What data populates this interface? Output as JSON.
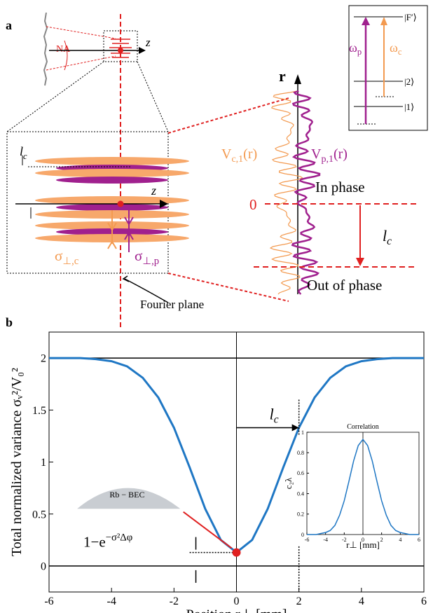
{
  "panel_a": {
    "label": "a",
    "na": "NA",
    "z_small": "z",
    "z_big": "z",
    "level_f": "|F′⟩",
    "level_2": "|2⟩",
    "level_1": "|1⟩",
    "omega_p": {
      "main": "ω",
      "sub": "p"
    },
    "omega_c": {
      "main": "ω",
      "sub": "c"
    },
    "r_axis": "r",
    "lc_box": {
      "main": "l",
      "sub": "c"
    },
    "v_c": {
      "main": "V",
      "sub": "c,1",
      "tail": "(r)"
    },
    "v_p": {
      "main": "V",
      "sub": "p,1",
      "tail": "(r)"
    },
    "in_phase": "In phase",
    "zero": "0",
    "lc_plot": {
      "main": "l",
      "sub": "c"
    },
    "out_phase": "Out of phase",
    "sigma_c": {
      "main": "σ",
      "sub": "⊥,c"
    },
    "sigma_p": {
      "main": "σ",
      "sub": "⊥,p"
    },
    "fourier": "Fourier plane"
  },
  "panel_b": {
    "label": "b",
    "lc": {
      "main": "l",
      "sub": "c"
    },
    "damping": {
      "main": "1−e",
      "sup": "−σ²Δφ"
    },
    "bec": "Rb − BEC"
  },
  "chart_data": [
    {
      "type": "line",
      "x_label": "Position r⊥ [mm]",
      "y_label": "Total normalized variance σᵥ²/V₀²",
      "x": [
        -6,
        -5.5,
        -5,
        -4.5,
        -4,
        -3.5,
        -3,
        -2.5,
        -2,
        -1.5,
        -1,
        -0.5,
        0,
        0.5,
        1,
        1.5,
        2,
        2.5,
        3,
        3.5,
        4,
        4.5,
        5,
        5.5,
        6
      ],
      "series": [
        {
          "color": "#1f77c4",
          "values": [
            2,
            2,
            2,
            1.99,
            1.97,
            1.92,
            1.81,
            1.62,
            1.33,
            0.95,
            0.55,
            0.25,
            0.13,
            0.25,
            0.55,
            0.95,
            1.33,
            1.62,
            1.81,
            1.92,
            1.97,
            1.99,
            2,
            2,
            2
          ]
        }
      ],
      "xlim": [
        -6,
        6
      ],
      "ylim": [
        -0.25,
        2.25
      ],
      "xticks": [
        -6,
        -4,
        -2,
        0,
        2,
        4,
        6
      ],
      "yticks": [
        0,
        0.5,
        1,
        1.5,
        2
      ]
    },
    {
      "type": "line",
      "title": "Correlation",
      "x_label": "r⊥ [mm]",
      "y_label": "c₂λ",
      "x": [
        -6,
        -5.5,
        -5,
        -4.5,
        -4,
        -3.5,
        -3,
        -2.5,
        -2,
        -1.5,
        -1,
        -0.5,
        0,
        0.5,
        1,
        1.5,
        2,
        2.5,
        3,
        3.5,
        4,
        4.5,
        5,
        5.5,
        6
      ],
      "series": [
        {
          "color": "#1f77c4",
          "values": [
            0,
            0,
            0,
            0.01,
            0.02,
            0.04,
            0.09,
            0.19,
            0.33,
            0.52,
            0.72,
            0.87,
            0.93,
            0.87,
            0.72,
            0.52,
            0.33,
            0.19,
            0.09,
            0.04,
            0.02,
            0.01,
            0,
            0,
            0
          ]
        }
      ],
      "xlim": [
        -6,
        6
      ],
      "ylim": [
        0,
        1
      ],
      "xticks": [
        -6,
        -4,
        -2,
        0,
        2,
        4,
        6
      ],
      "yticks": [
        0,
        0.2,
        0.4,
        0.6,
        0.8,
        1
      ]
    }
  ]
}
